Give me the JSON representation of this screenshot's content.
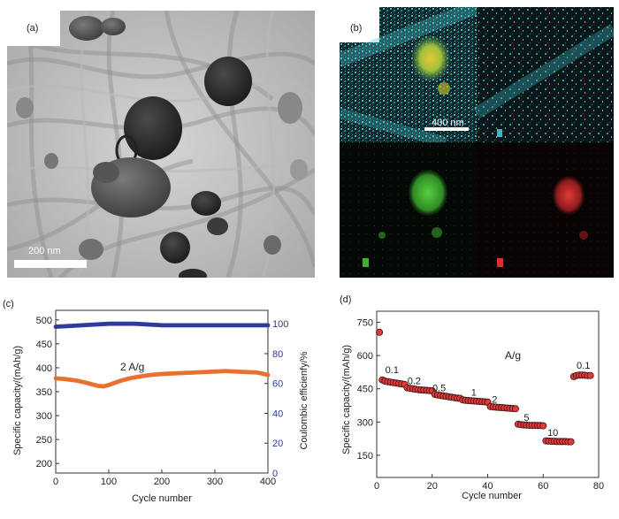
{
  "panels": {
    "a": {
      "label": "(a)",
      "scale_bar": "200 nm"
    },
    "b": {
      "label": "(b)",
      "scale_bar": "400 nm"
    }
  },
  "chart_data": [
    {
      "panel": "(c)",
      "type": "scatter",
      "xlabel": "Cycle number",
      "ylabel": "Specific capacity/(mAh/g)",
      "y2label": "Coulombic efficienfy/%",
      "annotation": "2 A/g",
      "xlim": [
        0,
        400
      ],
      "ylim": [
        180,
        520
      ],
      "y2lim": [
        0,
        109
      ],
      "xticks": [
        0,
        100,
        200,
        300,
        400
      ],
      "yticks": [
        200,
        250,
        300,
        350,
        400,
        450,
        500
      ],
      "y2ticks": [
        0,
        20,
        40,
        60,
        80,
        100
      ],
      "series": [
        {
          "axis": "left",
          "color": "#e8712f",
          "x": [
            0,
            20,
            40,
            60,
            80,
            90,
            100,
            120,
            140,
            160,
            180,
            200,
            220,
            240,
            260,
            280,
            300,
            320,
            340,
            360,
            380,
            400
          ],
          "y": [
            378,
            376,
            373,
            368,
            362,
            361,
            364,
            372,
            378,
            382,
            385,
            387,
            388,
            389,
            390,
            391,
            392,
            393,
            392,
            391,
            390,
            385
          ]
        },
        {
          "axis": "right",
          "color": "#2e3a9e",
          "x": [
            0,
            50,
            100,
            150,
            200,
            250,
            300,
            350,
            400
          ],
          "y": [
            98,
            99,
            100,
            100,
            99,
            99,
            99,
            99,
            99
          ]
        }
      ]
    },
    {
      "panel": "(d)",
      "type": "scatter",
      "xlabel": "Cycle number",
      "ylabel": "Specific capacity/(mAh/g)",
      "unit_annotation": "A/g",
      "xlim": [
        0,
        80
      ],
      "ylim": [
        50,
        800
      ],
      "xticks": [
        0,
        20,
        40,
        60,
        80
      ],
      "yticks": [
        150,
        300,
        450,
        600,
        750
      ],
      "rate_labels": [
        {
          "text": "0.1",
          "x": 5.5,
          "y": 520
        },
        {
          "text": "0.2",
          "x": 13.5,
          "y": 470
        },
        {
          "text": "0.5",
          "x": 22.5,
          "y": 438
        },
        {
          "text": "1",
          "x": 35,
          "y": 420
        },
        {
          "text": "2",
          "x": 42.5,
          "y": 388
        },
        {
          "text": "5",
          "x": 54,
          "y": 305
        },
        {
          "text": "10",
          "x": 63.5,
          "y": 238
        },
        {
          "text": "0.1",
          "x": 74.5,
          "y": 540
        }
      ],
      "series": [
        {
          "color": "#e23a3a",
          "x": [
            1,
            2,
            3,
            4,
            5,
            6,
            7,
            8,
            9,
            10,
            11,
            12,
            13,
            14,
            15,
            16,
            17,
            18,
            19,
            20,
            21,
            22,
            23,
            24,
            25,
            26,
            27,
            28,
            29,
            30,
            31,
            32,
            33,
            34,
            35,
            36,
            37,
            38,
            39,
            40,
            41,
            42,
            43,
            44,
            45,
            46,
            47,
            48,
            49,
            50,
            51,
            52,
            53,
            54,
            55,
            56,
            57,
            58,
            59,
            60,
            61,
            62,
            63,
            64,
            65,
            66,
            67,
            68,
            69,
            70,
            71,
            72,
            73,
            74,
            75,
            76,
            77
          ],
          "y": [
            705,
            490,
            485,
            482,
            480,
            478,
            476,
            474,
            472,
            470,
            455,
            452,
            450,
            448,
            446,
            445,
            444,
            443,
            442,
            441,
            425,
            422,
            420,
            418,
            416,
            414,
            412,
            410,
            408,
            407,
            400,
            398,
            397,
            396,
            395,
            394,
            393,
            392,
            391,
            390,
            370,
            368,
            367,
            366,
            365,
            364,
            363,
            362,
            361,
            360,
            290,
            288,
            287,
            286,
            285,
            285,
            285,
            284,
            284,
            283,
            215,
            214,
            213,
            213,
            212,
            212,
            212,
            212,
            211,
            211,
            505,
            510,
            512,
            512,
            511,
            510,
            510
          ]
        }
      ]
    }
  ]
}
